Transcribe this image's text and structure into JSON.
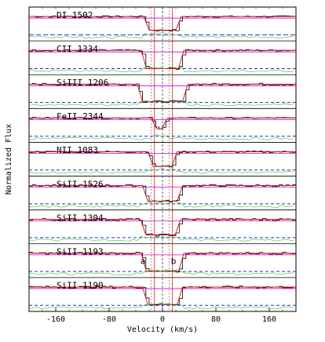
{
  "chart_data": {
    "type": "line",
    "title": "",
    "xlabel": "Velocity (km/s)",
    "ylabel": "Normalized Flux",
    "xlim": [
      -200,
      200
    ],
    "xticks": [
      -160,
      -80,
      0,
      80,
      160
    ],
    "xtick_labels": [
      "-160",
      "-80",
      "0",
      "80",
      "160"
    ],
    "component_markers": [
      {
        "name": "a",
        "velocity": -12
      },
      {
        "name": "b",
        "velocity": 15
      }
    ],
    "panels": [
      {
        "ion": "DI 1502",
        "trough_center": 0,
        "trough_halfwidth": 28,
        "depth": 0.75,
        "noise": 0.5
      },
      {
        "ion": "CII 1334",
        "trough_center": 0,
        "trough_halfwidth": 32,
        "depth": 1.0,
        "noise": 0.5
      },
      {
        "ion": "SiIII 1206",
        "trough_center": 0,
        "trough_halfwidth": 38,
        "depth": 0.95,
        "noise": 0.6
      },
      {
        "ion": "FeII 2344",
        "trough_center": -5,
        "trough_halfwidth": 12,
        "depth": 0.6,
        "noise": 0.4
      },
      {
        "ion": "NII 1083",
        "trough_center": 0,
        "trough_halfwidth": 22,
        "depth": 0.8,
        "noise": 0.5
      },
      {
        "ion": "SiII 1526",
        "trough_center": 0,
        "trough_halfwidth": 30,
        "depth": 0.85,
        "noise": 0.6
      },
      {
        "ion": "SiII 1304",
        "trough_center": -3,
        "trough_halfwidth": 30,
        "depth": 0.85,
        "noise": 0.7
      },
      {
        "ion": "SiII 1193",
        "trough_center": 0,
        "trough_halfwidth": 32,
        "depth": 1.0,
        "noise": 0.6
      },
      {
        "ion": "SiII 1190",
        "trough_center": 0,
        "trough_halfwidth": 30,
        "depth": 0.95,
        "noise": 0.6
      }
    ]
  }
}
